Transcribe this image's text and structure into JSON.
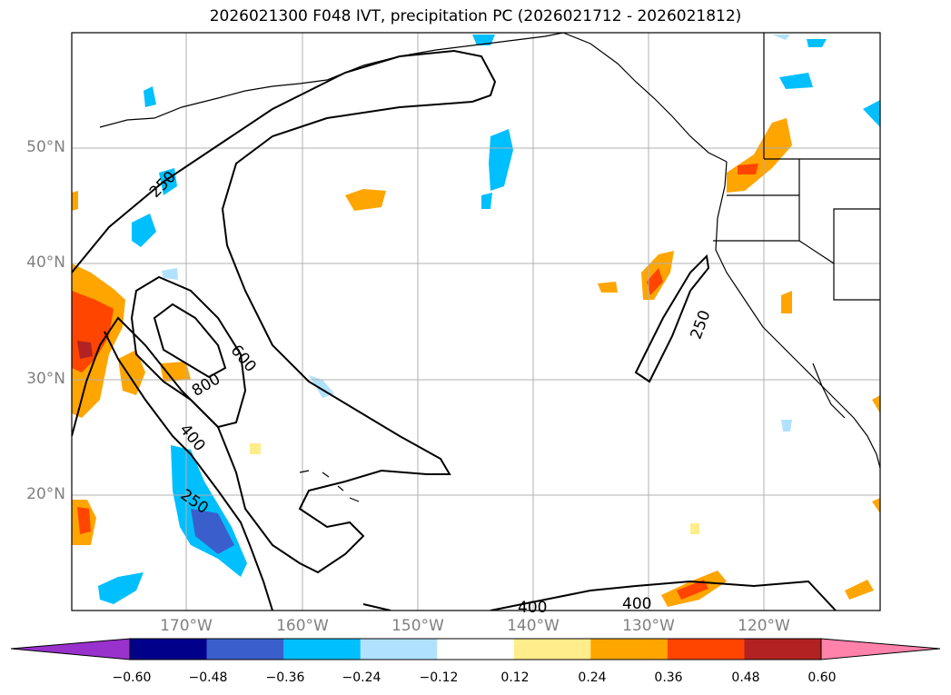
{
  "title": "2026021300 F048 IVT, precipitation PC (2026021712 - 2026021812)",
  "map": {
    "lat_labels": [
      "50°N",
      "40°N",
      "30°N",
      "20°N"
    ],
    "lon_labels": [
      "170°W",
      "160°W",
      "150°W",
      "140°W",
      "130°W",
      "120°W"
    ],
    "ivt_contour_labels": [
      "250",
      "250",
      "250",
      "400",
      "400",
      "400",
      "600",
      "800"
    ],
    "colors": {
      "grid": "#b0b0b0",
      "contour": "#000000",
      "coast": "#000000"
    }
  },
  "colorbar": {
    "tick_labels": [
      "−0.60",
      "−0.48",
      "−0.36",
      "−0.24",
      "−0.12",
      "0.12",
      "0.24",
      "0.36",
      "0.48",
      "0.60"
    ],
    "colors": [
      "#9932cc",
      "#00008b",
      "#3a5fcd",
      "#00bfff",
      "#b0e2ff",
      "#ffffff",
      "#ffec8b",
      "#ffa500",
      "#ff4500",
      "#b22222",
      "#ff82ab"
    ]
  }
}
